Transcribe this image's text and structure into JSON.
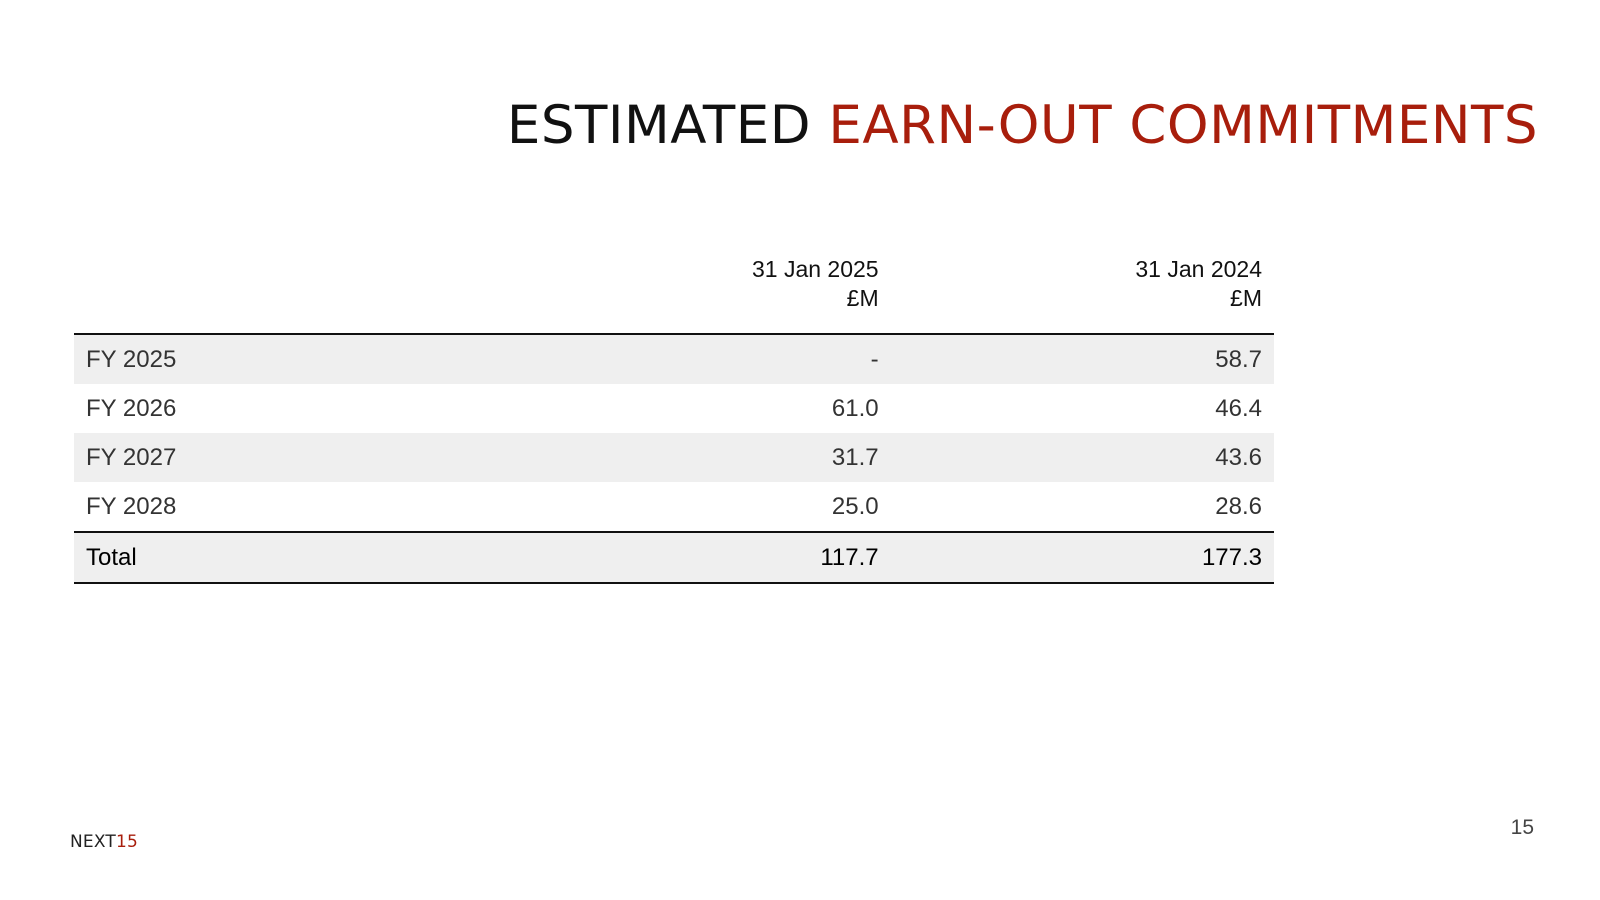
{
  "slide": {
    "title_part1": "ESTIMATED",
    "title_part2": "EARN-OUT COMMITMENTS",
    "accent_color": "#a81e0c",
    "page_number": "15"
  },
  "table": {
    "columns": [
      {
        "date": "31 Jan 2025",
        "unit": "£M"
      },
      {
        "date": "31 Jan 2024",
        "unit": "£M"
      }
    ],
    "rows": [
      {
        "label": "FY 2025",
        "values": [
          "-",
          "58.7"
        ]
      },
      {
        "label": "FY 2026",
        "values": [
          "61.0",
          "46.4"
        ]
      },
      {
        "label": "FY 2027",
        "values": [
          "31.7",
          "43.6"
        ]
      },
      {
        "label": "FY 2028",
        "values": [
          "25.0",
          "28.6"
        ]
      }
    ],
    "total": {
      "label": "Total",
      "values": [
        "117.7",
        "177.3"
      ]
    }
  },
  "logo": {
    "text_main": "NEXT",
    "text_accent": "15"
  }
}
